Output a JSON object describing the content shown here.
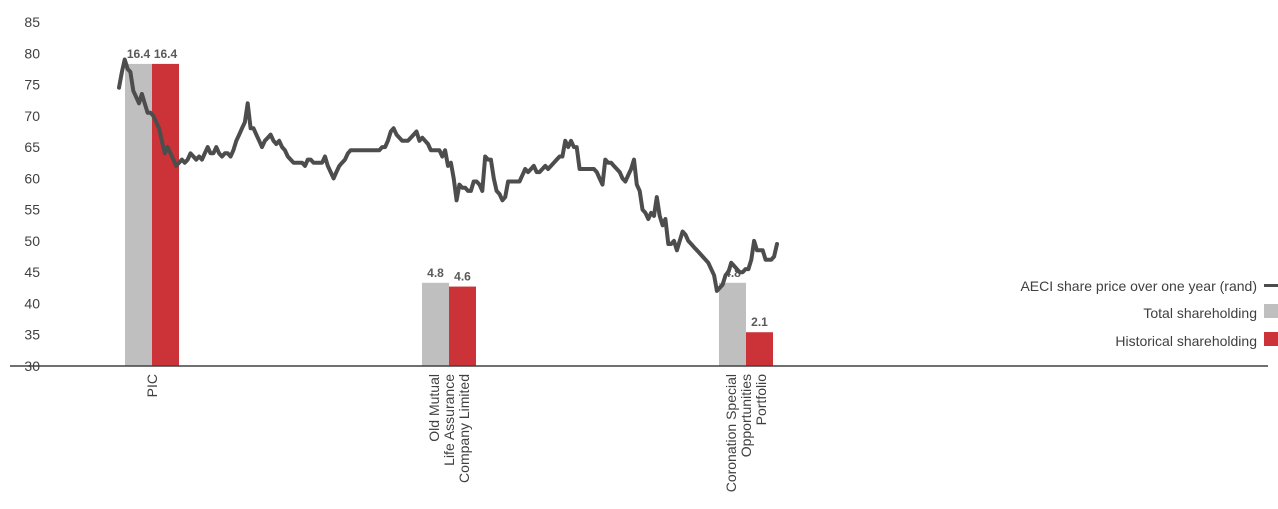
{
  "chart_data": {
    "type": "bar",
    "ylim": [
      30,
      85
    ],
    "y_ticks": [
      85,
      80,
      75,
      70,
      65,
      60,
      55,
      50,
      45,
      40,
      35,
      30
    ],
    "categories": [
      [
        "PIC"
      ],
      [
        "Old Mutual",
        "Life Assurance",
        "Company Limited"
      ],
      [
        "Coronation Special",
        "Opportunities",
        "Portfolio"
      ]
    ],
    "series": [
      {
        "name": "Total shareholding",
        "color": "#bfbfbf",
        "values": [
          16.4,
          4.8,
          4.8
        ],
        "labels": [
          "16.4",
          "4.8",
          "4.8"
        ],
        "bar_tops": [
          78.3,
          43.3,
          43.3
        ]
      },
      {
        "name": "Historical shareholding",
        "color": "#cc3338",
        "values": [
          16.4,
          4.6,
          2.1
        ],
        "labels": [
          "16.4",
          "4.6",
          "2.1"
        ],
        "bar_tops": [
          78.3,
          42.7,
          35.4
        ]
      }
    ],
    "line": {
      "name": "AECI share price over one year (rand)",
      "color": "#4d4d4d",
      "values": [
        74.5,
        77,
        79,
        77.5,
        77,
        74,
        73,
        72,
        73.5,
        72,
        70.5,
        70.5,
        70,
        69,
        68,
        66,
        64,
        65,
        64,
        63,
        62,
        62.5,
        63,
        62.5,
        63,
        64,
        63.5,
        63,
        63.5,
        63,
        64,
        65,
        64,
        64,
        65,
        64,
        63.5,
        64,
        64,
        63.5,
        64.5,
        66,
        67,
        68,
        69,
        72,
        68,
        68,
        67,
        66,
        65,
        66,
        66.5,
        67,
        66,
        65.5,
        66,
        65,
        64.5,
        63.5,
        63,
        62.5,
        62.5,
        62.5,
        62.5,
        62,
        63,
        63,
        62.5,
        62.5,
        62.5,
        62.5,
        63.5,
        62,
        61,
        60,
        61,
        62,
        62.5,
        63,
        64,
        64.5,
        64.5,
        64.5,
        64.5,
        64.5,
        64.5,
        64.5,
        64.5,
        64.5,
        64.5,
        64.5,
        65,
        65,
        66,
        67.5,
        68,
        67,
        66.5,
        66,
        66,
        66,
        66.5,
        67,
        67.5,
        66,
        66.5,
        66,
        65.5,
        64.5,
        64.5,
        64.5,
        64.5,
        63.5,
        64.5,
        62,
        62.5,
        60,
        56.5,
        59,
        58.5,
        58.5,
        58,
        58,
        59.5,
        59.5,
        59,
        58,
        63.5,
        63,
        63,
        60,
        58,
        57.5,
        56.5,
        57,
        59.5,
        59.5,
        59.5,
        59.5,
        59.5,
        60.5,
        61.5,
        61,
        61.5,
        62,
        61,
        61,
        61.5,
        62,
        61.5,
        62,
        62.5,
        63,
        63.5,
        63.5,
        66,
        65,
        66,
        65,
        65,
        61.5,
        61.5,
        61.5,
        61.5,
        61.5,
        61.5,
        61,
        60,
        59,
        63,
        62.5,
        62.5,
        62,
        61.5,
        61,
        60,
        59.5,
        60.5,
        61.5,
        63,
        59,
        58,
        55,
        54.5,
        53.5,
        54.5,
        54,
        57,
        54,
        52.5,
        53.5,
        49.5,
        49.5,
        50,
        48.5,
        50,
        51.5,
        51,
        50,
        49.5,
        49,
        48.5,
        48,
        47.5,
        47,
        46.5,
        45.5,
        44.5,
        42,
        42.5,
        43,
        44.5,
        45,
        46.5,
        46,
        45.5,
        45,
        45,
        45.5,
        45.5,
        47,
        50,
        48.5,
        48.5,
        48.5,
        47,
        47,
        47,
        47.5,
        49.5
      ]
    },
    "legend_position": "right",
    "grid": false
  }
}
